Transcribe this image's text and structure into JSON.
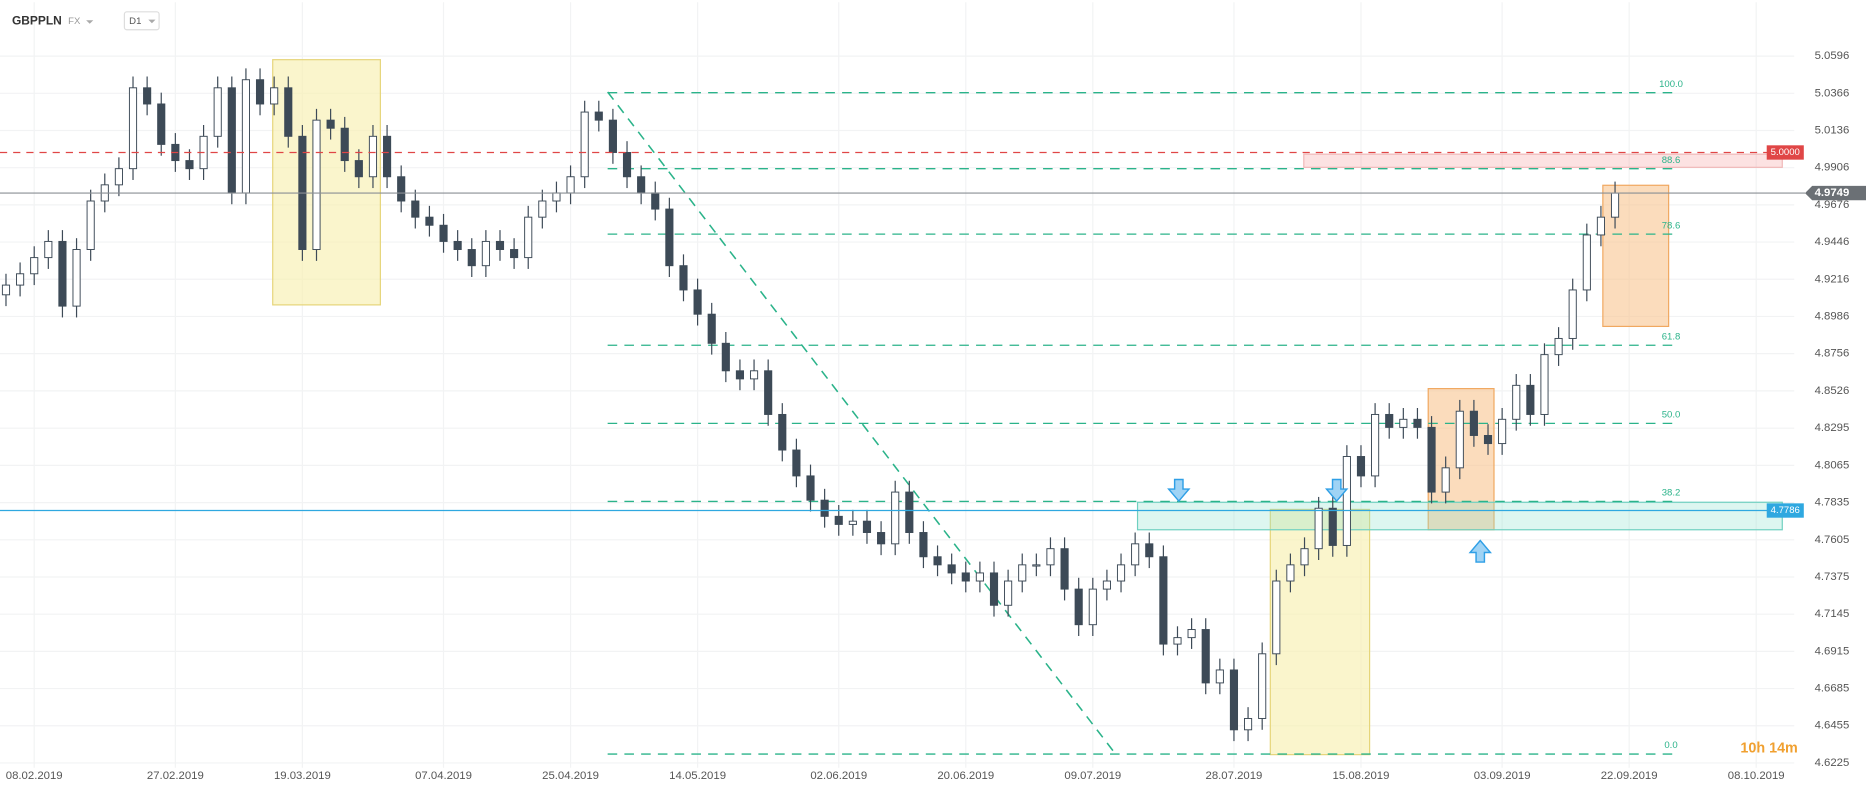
{
  "chart_data": {
    "type": "candlestick",
    "symbol": "GBPPLN",
    "market": "FX",
    "interval": "D1",
    "countdown": "10h 14m",
    "ylim": [
      4.6195,
      5.0929
    ],
    "yticks": [
      5.0596,
      5.0366,
      5.0136,
      4.9906,
      4.9676,
      4.9446,
      4.9216,
      4.8986,
      4.8756,
      4.8526,
      4.8295,
      4.8065,
      4.7835,
      4.7605,
      4.7375,
      4.7145,
      4.6915,
      4.6685,
      4.6455,
      4.6225
    ],
    "grid": true,
    "up_color": "#ffffff",
    "down_color": "#3d4a57",
    "wick_color": "#3d4a57",
    "categories": [
      null,
      null,
      "08.02.2019",
      null,
      null,
      null,
      null,
      null,
      null,
      null,
      null,
      null,
      "27.02.2019",
      null,
      null,
      null,
      null,
      null,
      null,
      null,
      null,
      "19.03.2019",
      null,
      null,
      null,
      null,
      null,
      null,
      null,
      null,
      null,
      "07.04.2019",
      null,
      null,
      null,
      null,
      null,
      null,
      null,
      null,
      "25.04.2019",
      null,
      null,
      null,
      null,
      null,
      null,
      null,
      null,
      "14.05.2019",
      null,
      null,
      null,
      null,
      null,
      null,
      null,
      null,
      null,
      "02.06.2019",
      null,
      null,
      null,
      null,
      null,
      null,
      null,
      null,
      "20.06.2019",
      null,
      null,
      null,
      null,
      null,
      null,
      null,
      null,
      "09.07.2019",
      null,
      null,
      null,
      null,
      null,
      null,
      null,
      null,
      null,
      "28.07.2019",
      null,
      null,
      null,
      null,
      null,
      null,
      null,
      null,
      "15.08.2019",
      null,
      null,
      null,
      null,
      null,
      null,
      null,
      null,
      null,
      "03.09.2019",
      null,
      null,
      null,
      null,
      null,
      null,
      null,
      null,
      "22.09.2019",
      null,
      null,
      null,
      null,
      null,
      null,
      null,
      null,
      "08.10.2019"
    ],
    "ohlc": [
      [
        4.912,
        4.925,
        4.905,
        4.918
      ],
      [
        4.918,
        4.932,
        4.911,
        4.925
      ],
      [
        4.925,
        4.942,
        4.918,
        4.935
      ],
      [
        4.935,
        4.952,
        4.928,
        4.945
      ],
      [
        4.945,
        4.952,
        4.898,
        4.905
      ],
      [
        4.905,
        4.947,
        4.898,
        4.94
      ],
      [
        4.94,
        4.977,
        4.933,
        4.97
      ],
      [
        4.97,
        4.987,
        4.963,
        4.98
      ],
      [
        4.98,
        4.997,
        4.973,
        4.99
      ],
      [
        4.99,
        5.047,
        4.983,
        5.04
      ],
      [
        5.04,
        5.047,
        5.023,
        5.03
      ],
      [
        5.03,
        5.037,
        4.998,
        5.005
      ],
      [
        5.005,
        5.012,
        4.988,
        4.995
      ],
      [
        4.995,
        5.002,
        4.983,
        4.99
      ],
      [
        4.99,
        5.017,
        4.983,
        5.01
      ],
      [
        5.01,
        5.047,
        5.003,
        5.04
      ],
      [
        5.04,
        5.047,
        4.968,
        4.975
      ],
      [
        4.975,
        5.052,
        4.968,
        5.045
      ],
      [
        5.045,
        5.052,
        5.023,
        5.03
      ],
      [
        5.03,
        5.047,
        5.023,
        5.04
      ],
      [
        5.04,
        5.047,
        5.003,
        5.01
      ],
      [
        5.01,
        5.017,
        4.933,
        4.94
      ],
      [
        4.94,
        5.027,
        4.933,
        5.02
      ],
      [
        5.02,
        5.027,
        5.008,
        5.015
      ],
      [
        5.015,
        5.022,
        4.988,
        4.995
      ],
      [
        4.995,
        5.002,
        4.978,
        4.985
      ],
      [
        4.985,
        5.017,
        4.978,
        5.01
      ],
      [
        5.01,
        5.017,
        4.978,
        4.985
      ],
      [
        4.985,
        4.992,
        4.963,
        4.97
      ],
      [
        4.97,
        4.977,
        4.953,
        4.96
      ],
      [
        4.96,
        4.967,
        4.948,
        4.955
      ],
      [
        4.955,
        4.962,
        4.938,
        4.945
      ],
      [
        4.945,
        4.952,
        4.933,
        4.94
      ],
      [
        4.94,
        4.947,
        4.923,
        4.93
      ],
      [
        4.93,
        4.952,
        4.923,
        4.945
      ],
      [
        4.945,
        4.952,
        4.933,
        4.94
      ],
      [
        4.94,
        4.947,
        4.928,
        4.935
      ],
      [
        4.935,
        4.967,
        4.928,
        4.96
      ],
      [
        4.96,
        4.977,
        4.953,
        4.97
      ],
      [
        4.97,
        4.982,
        4.963,
        4.975
      ],
      [
        4.975,
        4.992,
        4.968,
        4.985
      ],
      [
        4.985,
        5.032,
        4.978,
        5.025
      ],
      [
        5.025,
        5.032,
        5.013,
        5.02
      ],
      [
        5.02,
        5.027,
        4.993,
        5.0
      ],
      [
        5.0,
        5.007,
        4.978,
        4.985
      ],
      [
        4.985,
        4.992,
        4.968,
        4.975
      ],
      [
        4.975,
        4.982,
        4.958,
        4.965
      ],
      [
        4.965,
        4.972,
        4.923,
        4.93
      ],
      [
        4.93,
        4.937,
        4.908,
        4.915
      ],
      [
        4.915,
        4.922,
        4.893,
        4.9
      ],
      [
        4.9,
        4.907,
        4.875,
        4.882
      ],
      [
        4.882,
        4.889,
        4.858,
        4.865
      ],
      [
        4.865,
        4.872,
        4.853,
        4.86
      ],
      [
        4.86,
        4.872,
        4.853,
        4.865
      ],
      [
        4.865,
        4.872,
        4.831,
        4.838
      ],
      [
        4.838,
        4.845,
        4.809,
        4.816
      ],
      [
        4.816,
        4.823,
        4.793,
        4.8
      ],
      [
        4.8,
        4.807,
        4.778,
        4.785
      ],
      [
        4.785,
        4.792,
        4.768,
        4.775
      ],
      [
        4.775,
        4.782,
        4.763,
        4.77
      ],
      [
        4.77,
        4.779,
        4.763,
        4.772
      ],
      [
        4.772,
        4.779,
        4.758,
        4.765
      ],
      [
        4.765,
        4.772,
        4.751,
        4.758
      ],
      [
        4.758,
        4.797,
        4.751,
        4.79
      ],
      [
        4.79,
        4.797,
        4.758,
        4.765
      ],
      [
        4.765,
        4.772,
        4.743,
        4.75
      ],
      [
        4.75,
        4.757,
        4.738,
        4.745
      ],
      [
        4.745,
        4.752,
        4.733,
        4.74
      ],
      [
        4.74,
        4.747,
        4.728,
        4.735
      ],
      [
        4.735,
        4.747,
        4.728,
        4.74
      ],
      [
        4.74,
        4.747,
        4.713,
        4.72
      ],
      [
        4.72,
        4.742,
        4.713,
        4.735
      ],
      [
        4.735,
        4.752,
        4.728,
        4.745
      ],
      [
        4.745,
        4.752,
        4.738,
        4.745
      ],
      [
        4.745,
        4.762,
        4.738,
        4.755
      ],
      [
        4.755,
        4.762,
        4.723,
        4.73
      ],
      [
        4.73,
        4.737,
        4.701,
        4.708
      ],
      [
        4.708,
        4.737,
        4.701,
        4.73
      ],
      [
        4.73,
        4.742,
        4.723,
        4.735
      ],
      [
        4.735,
        4.752,
        4.728,
        4.745
      ],
      [
        4.745,
        4.765,
        4.738,
        4.758
      ],
      [
        4.758,
        4.765,
        4.743,
        4.75
      ],
      [
        4.75,
        4.757,
        4.689,
        4.696
      ],
      [
        4.696,
        4.707,
        4.689,
        4.7
      ],
      [
        4.7,
        4.712,
        4.693,
        4.705
      ],
      [
        4.705,
        4.712,
        4.665,
        4.672
      ],
      [
        4.672,
        4.687,
        4.665,
        4.68
      ],
      [
        4.68,
        4.687,
        4.636,
        4.643
      ],
      [
        4.643,
        4.657,
        4.636,
        4.65
      ],
      [
        4.65,
        4.697,
        4.643,
        4.69
      ],
      [
        4.69,
        4.742,
        4.683,
        4.735
      ],
      [
        4.735,
        4.752,
        4.728,
        4.745
      ],
      [
        4.745,
        4.762,
        4.738,
        4.755
      ],
      [
        4.755,
        4.787,
        4.748,
        4.78
      ],
      [
        4.78,
        4.787,
        4.75,
        4.757
      ],
      [
        4.757,
        4.819,
        4.75,
        4.812
      ],
      [
        4.812,
        4.819,
        4.793,
        4.8
      ],
      [
        4.8,
        4.845,
        4.793,
        4.838
      ],
      [
        4.838,
        4.845,
        4.823,
        4.83
      ],
      [
        4.83,
        4.842,
        4.823,
        4.835
      ],
      [
        4.835,
        4.842,
        4.823,
        4.83
      ],
      [
        4.83,
        4.837,
        4.783,
        4.79
      ],
      [
        4.79,
        4.812,
        4.783,
        4.805
      ],
      [
        4.805,
        4.847,
        4.798,
        4.84
      ],
      [
        4.84,
        4.847,
        4.818,
        4.825
      ],
      [
        4.825,
        4.832,
        4.813,
        4.82
      ],
      [
        4.82,
        4.842,
        4.813,
        4.835
      ],
      [
        4.835,
        4.863,
        4.828,
        4.856
      ],
      [
        4.856,
        4.863,
        4.831,
        4.838
      ],
      [
        4.838,
        4.882,
        4.831,
        4.875
      ],
      [
        4.875,
        4.892,
        4.868,
        4.885
      ],
      [
        4.885,
        4.922,
        4.878,
        4.915
      ],
      [
        4.915,
        4.956,
        4.908,
        4.949
      ],
      [
        4.949,
        4.967,
        4.942,
        4.96
      ],
      [
        4.96,
        4.982,
        4.953,
        4.9749
      ],
      null,
      null,
      null,
      null,
      null,
      null,
      null,
      null,
      null,
      null
    ],
    "fib_color": "#2bb38a",
    "fib_levels": [
      {
        "label": "100.0",
        "value": 5.037
      },
      {
        "label": "88.6",
        "value": 4.99
      },
      {
        "label": "78.6",
        "value": 4.9495
      },
      {
        "label": "61.8",
        "value": 4.8808
      },
      {
        "label": "50.0",
        "value": 4.8325
      },
      {
        "label": "38.2",
        "value": 4.7842
      },
      {
        "label": "0.0",
        "value": 4.628
      }
    ],
    "price_lines": [
      {
        "value": 5.0,
        "label": "5.0000",
        "color": "#e04646",
        "style": "dashed"
      },
      {
        "value": 4.7786,
        "label": "4.7786",
        "color": "#2fa8e0",
        "style": "solid"
      },
      {
        "value": 4.9749,
        "label": "4.9749",
        "color": "#8a8f94",
        "style": "current"
      }
    ]
  }
}
